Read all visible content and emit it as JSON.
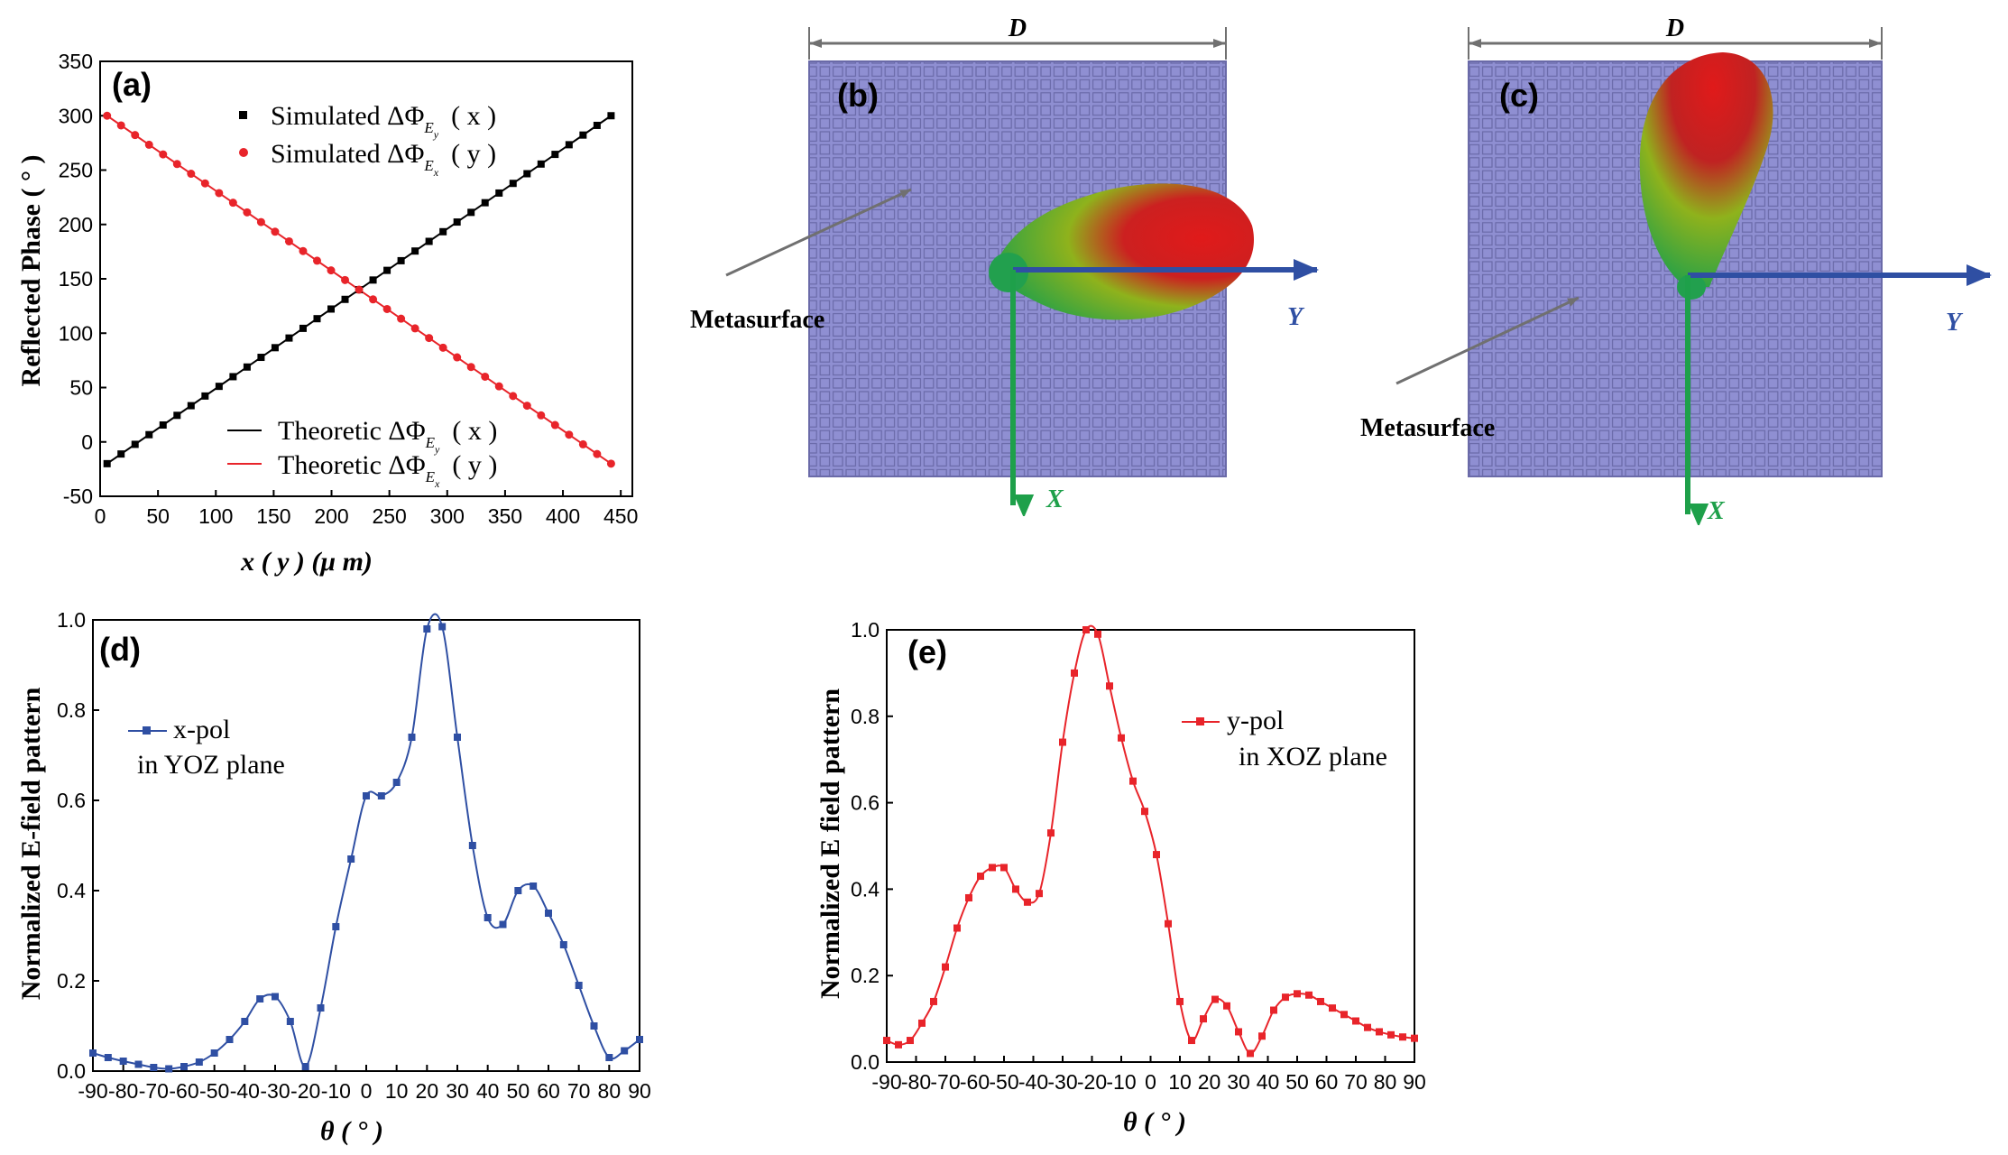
{
  "colors": {
    "black": "#000000",
    "red": "#e8242a",
    "blue": "#2f4fa3",
    "green": "#1ea04a",
    "grid_fill": "#8f8fd2",
    "grid_line": "#6a6aa8",
    "arrow_gray": "#707070"
  },
  "chart_data": [
    {
      "id": "a",
      "type": "line",
      "panel_label": "(a)",
      "xlabel": "x ( y )  (μ m)",
      "ylabel": "Reflected Phase ( ° )",
      "xlim": [
        0,
        460
      ],
      "ylim": [
        -50,
        350
      ],
      "xticks": [
        0,
        50,
        100,
        150,
        200,
        250,
        300,
        350,
        400,
        450
      ],
      "yticks": [
        -50,
        0,
        50,
        100,
        150,
        200,
        250,
        300,
        350
      ],
      "series": [
        {
          "name": "Simulated ΔΦ_Ey ( x )",
          "style": "scatter-square",
          "color": "#000000",
          "x_start": 6,
          "x_step": 12.1,
          "count": 37,
          "y_start": -20,
          "y_end": 300
        },
        {
          "name": "Simulated ΔΦ_Ex ( y )",
          "style": "scatter-circle",
          "color": "#e8242a",
          "x_start": 6,
          "x_step": 12.1,
          "count": 37,
          "y_start": 300,
          "y_end": -20
        },
        {
          "name": "Theoretic ΔΦ_Ey ( x )",
          "style": "line",
          "color": "#000000",
          "x": [
            6,
            441.6
          ],
          "y": [
            -20,
            300
          ]
        },
        {
          "name": "Theoretic ΔΦ_Ex ( y )",
          "style": "line",
          "color": "#e8242a",
          "x": [
            6,
            441.6
          ],
          "y": [
            300,
            -20
          ]
        }
      ],
      "legend": {
        "sim_x": "Simulated ΔΦ",
        "sim_x_sub": "E",
        "sim_x_subsub": "y",
        "sim_x_arg": "( x )",
        "sim_y": "Simulated ΔΦ",
        "sim_y_sub": "E",
        "sim_y_subsub": "x",
        "sim_y_arg": "( y )",
        "th_x": "Theoretic ΔΦ",
        "th_x_sub": "E",
        "th_x_subsub": "y",
        "th_x_arg": "( x )",
        "th_y": "Theoretic ΔΦ",
        "th_y_sub": "E",
        "th_y_subsub": "x",
        "th_y_arg": "( y )"
      }
    },
    {
      "id": "d",
      "type": "line",
      "panel_label": "(d)",
      "xlabel": "θ ( ° )",
      "ylabel": "Normalized E-field pattern",
      "xlim": [
        -90,
        90
      ],
      "ylim": [
        0.0,
        1.0
      ],
      "xticks": [
        -90,
        -80,
        -70,
        -60,
        -50,
        -40,
        -30,
        -20,
        -10,
        0,
        10,
        20,
        30,
        40,
        50,
        60,
        70,
        80,
        90
      ],
      "yticks": [
        0.0,
        0.2,
        0.4,
        0.6,
        0.8,
        1.0
      ],
      "legend_line1": "x-pol",
      "legend_line2": "in YOZ plane",
      "series": [
        {
          "name": "x-pol in YOZ plane",
          "color": "#2f4fa3",
          "x": [
            -90,
            -85,
            -80,
            -75,
            -70,
            -65,
            -60,
            -55,
            -50,
            -45,
            -40,
            -35,
            -30,
            -25,
            -20,
            -15,
            -10,
            -5,
            0,
            5,
            10,
            15,
            20,
            25,
            30,
            35,
            40,
            45,
            50,
            55,
            60,
            65,
            70,
            75,
            80,
            85,
            90
          ],
          "y": [
            0.04,
            0.03,
            0.022,
            0.015,
            0.008,
            0.005,
            0.01,
            0.02,
            0.04,
            0.07,
            0.11,
            0.16,
            0.165,
            0.11,
            0.01,
            0.14,
            0.32,
            0.47,
            0.61,
            0.61,
            0.64,
            0.74,
            0.98,
            0.985,
            0.74,
            0.5,
            0.34,
            0.325,
            0.4,
            0.41,
            0.35,
            0.28,
            0.19,
            0.1,
            0.03,
            0.045,
            0.07
          ]
        }
      ]
    },
    {
      "id": "e",
      "type": "line",
      "panel_label": "(e)",
      "xlabel": "θ ( ° )",
      "ylabel": "Normalized E field pattern",
      "xlim": [
        -90,
        90
      ],
      "ylim": [
        0.0,
        1.0
      ],
      "xticks": [
        -90,
        -80,
        -70,
        -60,
        -50,
        -40,
        -30,
        -20,
        -10,
        0,
        10,
        20,
        30,
        40,
        50,
        60,
        70,
        80,
        90
      ],
      "yticks": [
        0.0,
        0.2,
        0.4,
        0.6,
        0.8,
        1.0
      ],
      "legend_line1": "y-pol",
      "legend_line2": "in XOZ plane",
      "series": [
        {
          "name": "y-pol in XOZ plane",
          "color": "#e8242a",
          "x": [
            -90,
            -86,
            -82,
            -78,
            -74,
            -70,
            -66,
            -62,
            -58,
            -54,
            -50,
            -46,
            -42,
            -38,
            -34,
            -30,
            -26,
            -22,
            -18,
            -14,
            -10,
            -6,
            -2,
            2,
            6,
            10,
            14,
            18,
            22,
            26,
            30,
            34,
            38,
            42,
            46,
            50,
            54,
            58,
            62,
            66,
            70,
            74,
            78,
            82,
            86,
            90
          ],
          "y": [
            0.05,
            0.04,
            0.05,
            0.09,
            0.14,
            0.22,
            0.31,
            0.38,
            0.43,
            0.45,
            0.45,
            0.4,
            0.37,
            0.39,
            0.53,
            0.74,
            0.9,
            1.0,
            0.99,
            0.87,
            0.75,
            0.65,
            0.58,
            0.48,
            0.32,
            0.14,
            0.05,
            0.1,
            0.145,
            0.13,
            0.07,
            0.02,
            0.06,
            0.12,
            0.15,
            0.158,
            0.155,
            0.14,
            0.125,
            0.11,
            0.095,
            0.08,
            0.07,
            0.063,
            0.058,
            0.055
          ]
        }
      ]
    }
  ],
  "panel_b": {
    "label": "(b)",
    "dimension": "D",
    "annotation": "Metasurface",
    "axis_y": "Y",
    "axis_x": "X"
  },
  "panel_c": {
    "label": "(c)",
    "dimension": "D",
    "annotation": "Metasurface",
    "axis_y": "Y",
    "axis_x": "X"
  }
}
